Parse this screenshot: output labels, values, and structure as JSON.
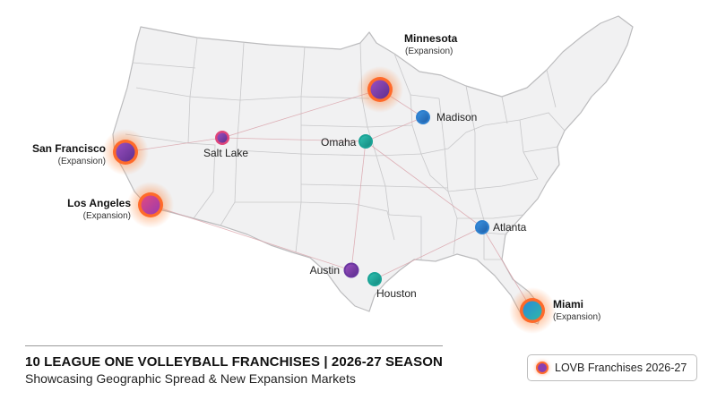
{
  "title": "10 LEAGUE ONE VOLLEYBALL FRANCHISES | 2026-27 SEASON",
  "subtitle": "Showcasing Geographic Spread & New Expansion Markets",
  "legend": {
    "label": "LOVB Franchises 2026-27"
  },
  "colors": {
    "expansion_glow": "#ff6a2a",
    "purple": "#7b3fa8",
    "teal": "#1ba89a",
    "blue": "#2b78c8",
    "pink": "#d8407a"
  },
  "cities": [
    {
      "id": "minnesota",
      "name": "Minnesota",
      "sub": "(Expansion)",
      "expansion": true,
      "icon": "purple-marker"
    },
    {
      "id": "madison",
      "name": "Madison",
      "sub": "",
      "expansion": false,
      "icon": "blue-marker"
    },
    {
      "id": "omaha",
      "name": "Omaha",
      "sub": "",
      "expansion": false,
      "icon": "teal-marker"
    },
    {
      "id": "salt-lake",
      "name": "Salt Lake",
      "sub": "",
      "expansion": false,
      "icon": "pink-purple-marker"
    },
    {
      "id": "san-francisco",
      "name": "San Francisco",
      "sub": "(Expansion)",
      "expansion": true,
      "icon": "purple-marker"
    },
    {
      "id": "los-angeles",
      "name": "Los Angeles",
      "sub": "(Expansion)",
      "expansion": true,
      "icon": "pink-marker"
    },
    {
      "id": "atlanta",
      "name": "Atlanta",
      "sub": "",
      "expansion": false,
      "icon": "blue-marker"
    },
    {
      "id": "austin",
      "name": "Austin",
      "sub": "",
      "expansion": false,
      "icon": "purple-marker"
    },
    {
      "id": "houston",
      "name": "Houston",
      "sub": "",
      "expansion": false,
      "icon": "teal-marker"
    },
    {
      "id": "miami",
      "name": "Miami",
      "sub": "(Expansion)",
      "expansion": true,
      "icon": "blue-teal-marker"
    }
  ]
}
